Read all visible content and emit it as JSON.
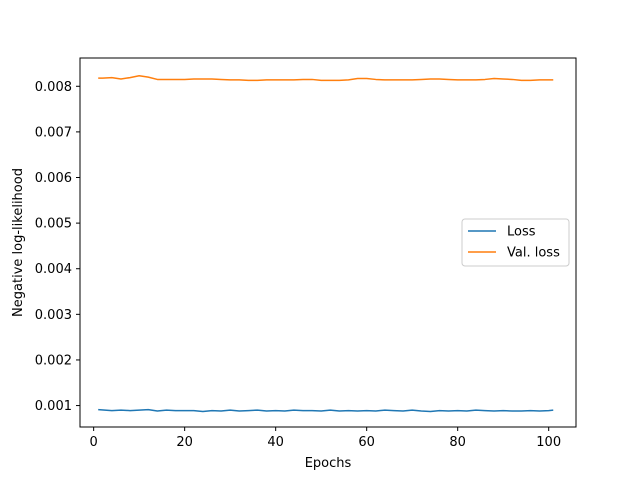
{
  "chart_data": {
    "type": "line",
    "title": "",
    "xlabel": "Epochs",
    "ylabel": "Negative log-likelihood",
    "xlim": [
      -3.0,
      106.0
    ],
    "ylim": [
      0.00053,
      0.00862
    ],
    "xticks": [
      0,
      20,
      40,
      60,
      80,
      100
    ],
    "yticks": [
      0.001,
      0.002,
      0.003,
      0.004,
      0.005,
      0.006,
      0.007,
      0.008
    ],
    "xtick_labels": [
      "0",
      "20",
      "40",
      "60",
      "80",
      "100"
    ],
    "ytick_labels": [
      "0.001",
      "0.002",
      "0.003",
      "0.004",
      "0.005",
      "0.006",
      "0.007",
      "0.008"
    ],
    "grid": false,
    "legend_position": "center-right",
    "series": [
      {
        "name": "Loss",
        "color": "#1f77b4",
        "x": [
          1,
          4,
          6,
          8,
          10,
          12,
          14,
          16,
          18,
          20,
          22,
          24,
          26,
          28,
          30,
          32,
          34,
          36,
          38,
          40,
          42,
          44,
          46,
          48,
          50,
          52,
          54,
          56,
          58,
          60,
          62,
          64,
          66,
          68,
          70,
          72,
          74,
          76,
          78,
          80,
          82,
          84,
          86,
          88,
          90,
          92,
          94,
          96,
          98,
          100,
          101
        ],
        "y": [
          0.00091,
          0.00089,
          0.0009,
          0.00089,
          0.0009,
          0.00091,
          0.00088,
          0.0009,
          0.00089,
          0.00089,
          0.00089,
          0.00087,
          0.00089,
          0.00088,
          0.0009,
          0.00088,
          0.00089,
          0.0009,
          0.00088,
          0.00089,
          0.00088,
          0.0009,
          0.00089,
          0.00089,
          0.00088,
          0.0009,
          0.00088,
          0.00089,
          0.00088,
          0.00089,
          0.00088,
          0.0009,
          0.00089,
          0.00088,
          0.0009,
          0.00088,
          0.00087,
          0.00089,
          0.00088,
          0.00089,
          0.00088,
          0.0009,
          0.00089,
          0.00088,
          0.00089,
          0.00088,
          0.00088,
          0.00089,
          0.00088,
          0.00089,
          0.0009
        ]
      },
      {
        "name": "Val. loss",
        "color": "#ff7f0e",
        "x": [
          1,
          2,
          4,
          6,
          8,
          10,
          12,
          14,
          16,
          18,
          20,
          22,
          24,
          26,
          28,
          30,
          32,
          34,
          36,
          38,
          40,
          42,
          44,
          46,
          48,
          50,
          52,
          54,
          56,
          58,
          60,
          62,
          64,
          66,
          68,
          70,
          72,
          74,
          76,
          78,
          80,
          82,
          84,
          86,
          88,
          90,
          92,
          94,
          96,
          98,
          100,
          101
        ],
        "y": [
          0.00818,
          0.00818,
          0.00819,
          0.00816,
          0.00819,
          0.00823,
          0.0082,
          0.00815,
          0.00815,
          0.00815,
          0.00815,
          0.00816,
          0.00816,
          0.00816,
          0.00815,
          0.00814,
          0.00814,
          0.00813,
          0.00813,
          0.00814,
          0.00814,
          0.00814,
          0.00814,
          0.00815,
          0.00815,
          0.00813,
          0.00813,
          0.00813,
          0.00814,
          0.00817,
          0.00817,
          0.00815,
          0.00814,
          0.00814,
          0.00814,
          0.00814,
          0.00815,
          0.00816,
          0.00816,
          0.00815,
          0.00814,
          0.00814,
          0.00814,
          0.00815,
          0.00817,
          0.00816,
          0.00815,
          0.00813,
          0.00813,
          0.00814,
          0.00814,
          0.00814
        ]
      }
    ]
  }
}
